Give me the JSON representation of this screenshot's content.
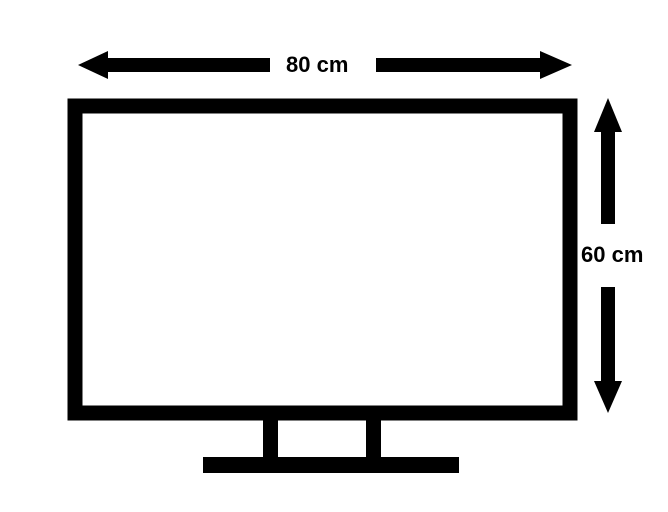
{
  "dimensions": {
    "width_label": "80 cm",
    "height_label": "60 cm"
  },
  "colors": {
    "stroke": "#000000",
    "background": "#ffffff"
  }
}
